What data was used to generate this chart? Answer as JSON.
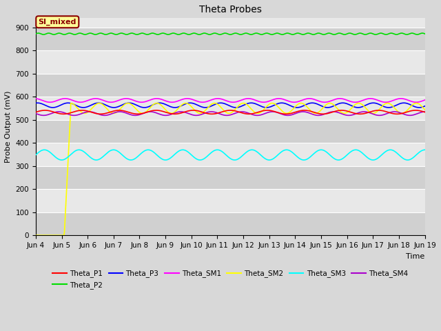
{
  "title": "Theta Probes",
  "ylabel": "Probe Output (mV)",
  "xlabel": "Time",
  "ylim": [
    0,
    940
  ],
  "yticks": [
    0,
    100,
    200,
    300,
    400,
    500,
    600,
    700,
    800,
    900
  ],
  "xtick_labels": [
    "Jun 4",
    "Jun 5",
    "Jun 6",
    "Jun 7",
    "Jun 8",
    "Jun 9",
    "Jun 10",
    "Jun 11",
    "Jun 12",
    "Jun 13",
    "Jun 14",
    "Jun 15",
    "Jun 16",
    "Jun 17",
    "Jun 18",
    "Jun 19"
  ],
  "figure_bg": "#d8d8d8",
  "plot_bg_light": "#e8e8e8",
  "plot_bg_dark": "#d0d0d0",
  "annotation_text": "SI_mixed",
  "annotation_bg": "#ffff99",
  "annotation_border": "#8b0000",
  "series": {
    "Theta_P1": {
      "color": "#ff0000",
      "base": 533,
      "amp": 8,
      "freq": 0.7,
      "phase": 0.0
    },
    "Theta_P2": {
      "color": "#00dd00",
      "base": 872,
      "amp": 3,
      "freq": 2.5,
      "phase": 0.0
    },
    "Theta_P3": {
      "color": "#0000ff",
      "base": 563,
      "amp": 10,
      "freq": 0.85,
      "phase": 1.2
    },
    "Theta_SM1": {
      "color": "#ff00ff",
      "base": 584,
      "amp": 8,
      "freq": 0.85,
      "phase": 1.8
    },
    "Theta_SM2": {
      "color": "#ffff00",
      "base": 550,
      "amp": 22,
      "freq": 0.9,
      "phase": 0.3
    },
    "Theta_SM3": {
      "color": "#00ffff",
      "base": 348,
      "amp": 22,
      "freq": 0.75,
      "phase": 0.0
    },
    "Theta_SM4": {
      "color": "#aa00cc",
      "base": 527,
      "amp": 8,
      "freq": 0.85,
      "phase": 3.1
    }
  }
}
